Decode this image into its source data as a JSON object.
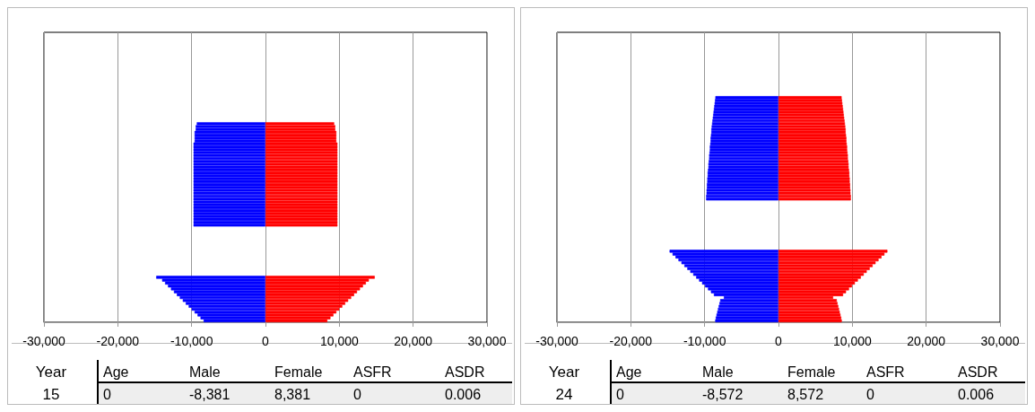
{
  "chart_data": [
    {
      "type": "bar",
      "orientation": "horizontal",
      "stacked": true,
      "grid": "x",
      "categories": [
        null,
        null,
        null,
        null,
        null,
        null,
        null,
        null,
        null,
        null,
        null,
        null,
        null,
        null,
        null,
        null,
        null,
        null,
        null,
        null,
        null,
        null,
        null,
        null,
        null,
        null,
        null,
        null,
        null,
        null,
        null,
        null,
        null,
        null,
        null,
        null,
        null,
        null,
        null,
        null,
        null,
        null,
        null,
        null,
        null,
        null,
        null,
        null,
        null,
        null,
        null,
        null,
        null,
        null,
        null,
        null,
        null,
        null,
        null,
        null,
        null,
        null,
        null,
        null,
        null,
        null,
        null,
        null,
        null,
        null,
        null,
        null,
        null,
        null,
        null,
        null,
        null,
        null,
        null,
        null,
        null,
        null,
        null,
        null,
        null,
        null,
        null,
        null,
        null,
        null,
        null,
        null,
        null,
        null,
        null,
        null,
        null,
        null,
        null,
        null
      ],
      "xlim": [
        -30000,
        30000
      ],
      "xticks": [
        {
          "value": -30000,
          "label": "-30,000"
        },
        {
          "value": -20000,
          "label": "-20,000"
        },
        {
          "value": -10000,
          "label": "-10,000"
        },
        0,
        {
          "value": 10000,
          "label": "10,000"
        },
        {
          "value": 20000,
          "label": "20,000"
        },
        {
          "value": 30000,
          "label": "30,000"
        }
      ],
      "series": [
        {
          "color": "#0000ff",
          "values": [
            null,
            null,
            null,
            null,
            null,
            null,
            null,
            null,
            null,
            null,
            null,
            null,
            null,
            null,
            null,
            null,
            null,
            null,
            null,
            null,
            null,
            null,
            null,
            null,
            null,
            null,
            null,
            null,
            null,
            null,
            null,
            -9300,
            -9450,
            -9450,
            -9600,
            -9600,
            -9600,
            -9600,
            -9750,
            -9750,
            -9750,
            -9750,
            -9750,
            -9750,
            -9750,
            -9750,
            -9750,
            -9750,
            -9750,
            -9750,
            -9750,
            -9750,
            -9750,
            -9750,
            -9750,
            -9750,
            -9750,
            -9750,
            -9750,
            -9750,
            -9750,
            -9750,
            -9750,
            -9750,
            -9750,
            -9750,
            -9750,
            null,
            null,
            null,
            null,
            null,
            null,
            null,
            null,
            null,
            null,
            null,
            null,
            null,
            null,
            null,
            null,
            null,
            -14800,
            -14000,
            -13600,
            -13200,
            -12800,
            -12400,
            -12000,
            -11600,
            -11200,
            -10800,
            -10400,
            -10000,
            -9600,
            -9200,
            -8800,
            -8381
          ]
        },
        {
          "color": "#ff0000",
          "values": [
            null,
            null,
            null,
            null,
            null,
            null,
            null,
            null,
            null,
            null,
            null,
            null,
            null,
            null,
            null,
            null,
            null,
            null,
            null,
            null,
            null,
            null,
            null,
            null,
            null,
            null,
            null,
            null,
            null,
            null,
            null,
            9300,
            9450,
            9450,
            9600,
            9600,
            9600,
            9600,
            9750,
            9750,
            9750,
            9750,
            9750,
            9750,
            9750,
            9750,
            9750,
            9750,
            9750,
            9750,
            9750,
            9750,
            9750,
            9750,
            9750,
            9750,
            9750,
            9750,
            9750,
            9750,
            9750,
            9750,
            9750,
            9750,
            9750,
            9750,
            9750,
            null,
            null,
            null,
            null,
            null,
            null,
            null,
            null,
            null,
            null,
            null,
            null,
            null,
            null,
            null,
            null,
            null,
            14800,
            14000,
            13600,
            13200,
            12800,
            12400,
            12000,
            11600,
            11200,
            10800,
            10400,
            10000,
            9600,
            9200,
            8800,
            8381
          ]
        }
      ],
      "annotations": [
        "Year",
        "Age",
        "Male",
        "Female",
        "ASFR",
        "ASDR",
        "15",
        "0",
        "-8,381",
        "8,381",
        "0",
        "0.006"
      ]
    },
    {
      "type": "bar",
      "orientation": "horizontal",
      "stacked": true,
      "grid": "x",
      "categories": [
        null,
        null,
        null,
        null,
        null,
        null,
        null,
        null,
        null,
        null,
        null,
        null,
        null,
        null,
        null,
        null,
        null,
        null,
        null,
        null,
        null,
        null,
        null,
        null,
        null,
        null,
        null,
        null,
        null,
        null,
        null,
        null,
        null,
        null,
        null,
        null,
        null,
        null,
        null,
        null,
        null,
        null,
        null,
        null,
        null,
        null,
        null,
        null,
        null,
        null,
        null,
        null,
        null,
        null,
        null,
        null,
        null,
        null,
        null,
        null,
        null,
        null,
        null,
        null,
        null,
        null,
        null,
        null,
        null,
        null,
        null,
        null,
        null,
        null,
        null,
        null,
        null,
        null,
        null,
        null,
        null,
        null,
        null,
        null,
        null,
        null,
        null,
        null,
        null,
        null,
        null,
        null,
        null,
        null,
        null,
        null,
        null,
        null,
        null,
        null
      ],
      "xlim": [
        -30000,
        30000
      ],
      "xticks": [
        {
          "value": -30000,
          "label": "-30,000"
        },
        {
          "value": -20000,
          "label": "-20,000"
        },
        {
          "value": -10000,
          "label": "-10,000"
        },
        0,
        {
          "value": 10000,
          "label": "10,000"
        },
        {
          "value": 20000,
          "label": "20,000"
        },
        {
          "value": 30000,
          "label": "30,000"
        }
      ],
      "series": [
        {
          "color": "#0000ff",
          "values": [
            null,
            null,
            null,
            null,
            null,
            null,
            null,
            null,
            null,
            null,
            null,
            null,
            null,
            null,
            null,
            null,
            null,
            null,
            null,
            null,
            null,
            null,
            -8550,
            -8600,
            -8650,
            -8700,
            -8750,
            -8800,
            -8850,
            -8900,
            -8950,
            -9000,
            -9050,
            -9100,
            -9100,
            -9150,
            -9200,
            -9200,
            -9250,
            -9300,
            -9300,
            -9350,
            -9400,
            -9400,
            -9450,
            -9500,
            -9500,
            -9550,
            -9600,
            -9600,
            -9650,
            -9650,
            -9700,
            -9700,
            -9750,
            -9750,
            -9800,
            -9800,
            null,
            null,
            null,
            null,
            null,
            null,
            null,
            null,
            null,
            null,
            null,
            null,
            null,
            null,
            null,
            null,
            null,
            -14750,
            -14350,
            -13950,
            -13550,
            -13150,
            -12750,
            -12350,
            -11950,
            -11550,
            -11150,
            -10750,
            -10350,
            -9950,
            -9550,
            -9150,
            -8750,
            -7400,
            -7900,
            -8000,
            -8100,
            -8200,
            -8300,
            -8400,
            -8500,
            -8572
          ]
        },
        {
          "color": "#ff0000",
          "values": [
            null,
            null,
            null,
            null,
            null,
            null,
            null,
            null,
            null,
            null,
            null,
            null,
            null,
            null,
            null,
            null,
            null,
            null,
            null,
            null,
            null,
            null,
            8550,
            8600,
            8650,
            8700,
            8750,
            8800,
            8850,
            8900,
            8950,
            9000,
            9050,
            9100,
            9100,
            9150,
            9200,
            9200,
            9250,
            9300,
            9300,
            9350,
            9400,
            9400,
            9450,
            9500,
            9500,
            9550,
            9600,
            9600,
            9650,
            9650,
            9700,
            9700,
            9750,
            9750,
            9800,
            9800,
            null,
            null,
            null,
            null,
            null,
            null,
            null,
            null,
            null,
            null,
            null,
            null,
            null,
            null,
            null,
            null,
            null,
            14750,
            14350,
            13950,
            13550,
            13150,
            12750,
            12350,
            11950,
            11550,
            11150,
            10750,
            10350,
            9950,
            9550,
            9150,
            8750,
            7400,
            7900,
            8000,
            8100,
            8200,
            8300,
            8400,
            8500,
            8572
          ]
        }
      ],
      "annotations": [
        "Year",
        "Age",
        "Male",
        "Female",
        "ASFR",
        "ASDR",
        "24",
        "0",
        "-8,572",
        "8,572",
        "0",
        "0.006"
      ]
    }
  ]
}
